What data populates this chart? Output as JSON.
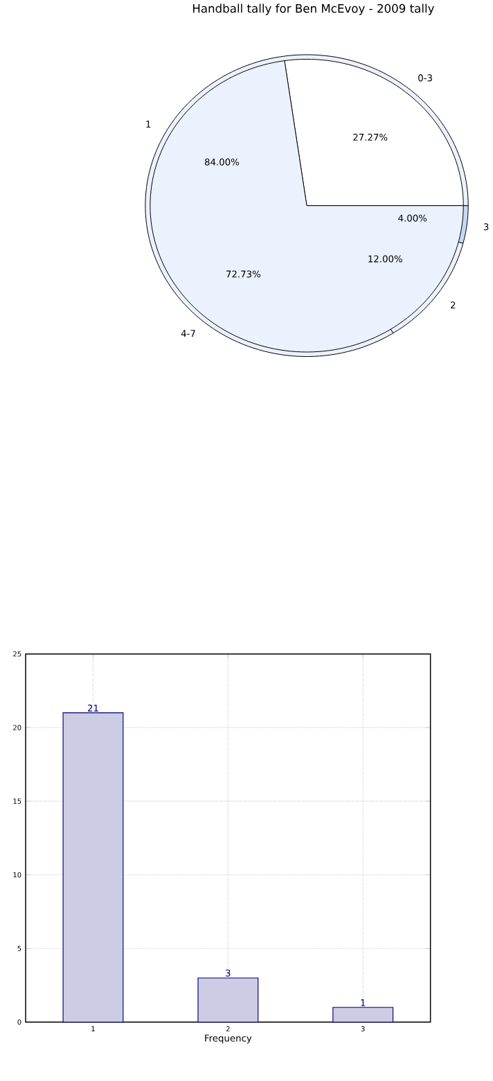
{
  "chart_data": [
    {
      "type": "pie",
      "title": "Handball tally for Ben McEvoy - 2009 tally",
      "categories": [
        "0-3",
        "4-7"
      ],
      "values": [
        27.27,
        72.73
      ],
      "colors": [
        "#ffffff",
        "#ebf1fd"
      ],
      "value_labels": [
        "27.27%",
        "72.73%"
      ]
    },
    {
      "type": "pie",
      "categories": [
        "1",
        "2",
        "3"
      ],
      "values": [
        84,
        12,
        4
      ],
      "colors": [
        "#ebf1fd",
        "#ebf1fd",
        "#c5d8f6"
      ],
      "value_labels": [
        "84.00%",
        "12.00%",
        "4.00%"
      ]
    },
    {
      "type": "bar",
      "categories": [
        "1",
        "2",
        "3"
      ],
      "values": [
        21,
        3,
        1
      ],
      "color": "#ccccE5",
      "data_labels": true,
      "xlabel": "Frequency",
      "ylim": [
        0,
        25
      ],
      "yticks": [
        0,
        5,
        10,
        15,
        20,
        25
      ],
      "grid": true
    }
  ]
}
